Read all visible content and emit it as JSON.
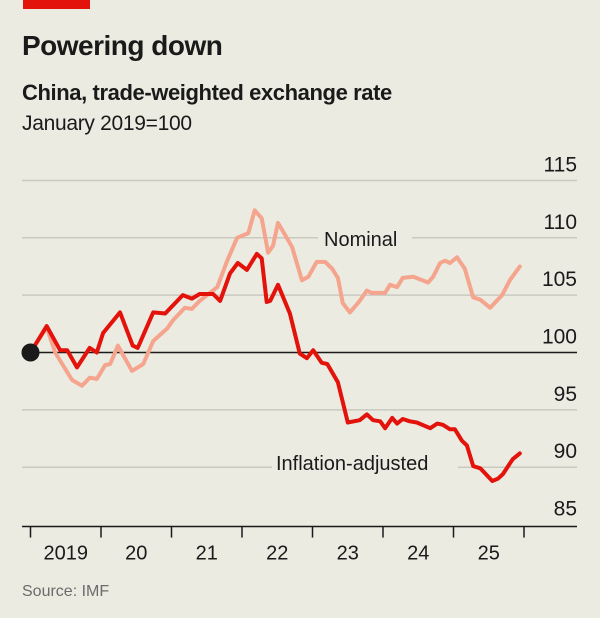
{
  "header": {
    "title": "Powering down",
    "subtitle": "China, trade-weighted exchange rate",
    "unit": "January 2019=100"
  },
  "source": "Source: IMF",
  "colors": {
    "accent_bar": "#e3120b",
    "inflation_adjusted": "#e3120b",
    "nominal": "#f5a48e",
    "background": "#ebebe1"
  },
  "chart_data": {
    "type": "line",
    "title": "Powering down",
    "subtitle": "China, trade-weighted exchange rate",
    "ylabel": "January 2019=100",
    "xlim": [
      2019.0,
      2026.0
    ],
    "ylim": [
      85,
      115
    ],
    "yticks": [
      85,
      90,
      95,
      100,
      105,
      110,
      115
    ],
    "ytick_labels": [
      "85",
      "90",
      "95",
      "100",
      "105",
      "110",
      "115"
    ],
    "xticks": [
      2019,
      2020,
      2021,
      2022,
      2023,
      2024,
      2025
    ],
    "xtick_labels": [
      "2019",
      "20",
      "21",
      "22",
      "23",
      "24",
      "25"
    ],
    "y_axis_side": "right",
    "grid": true,
    "baseline": 100,
    "start_marker": {
      "x": 2019.0,
      "y": 100
    },
    "series": [
      {
        "name": "Nominal",
        "color": "#f5a48e",
        "points": [
          [
            2019.0,
            100.0
          ],
          [
            2019.23,
            102.2
          ],
          [
            2019.35,
            100.0
          ],
          [
            2019.45,
            99.0
          ],
          [
            2019.59,
            97.6
          ],
          [
            2019.73,
            97.1
          ],
          [
            2019.84,
            97.8
          ],
          [
            2019.94,
            97.7
          ],
          [
            2020.06,
            98.9
          ],
          [
            2020.13,
            99.0
          ],
          [
            2020.24,
            100.6
          ],
          [
            2020.44,
            98.4
          ],
          [
            2020.6,
            99.0
          ],
          [
            2020.74,
            101.0
          ],
          [
            2020.94,
            102.1
          ],
          [
            2021.02,
            102.8
          ],
          [
            2021.19,
            103.9
          ],
          [
            2021.29,
            103.8
          ],
          [
            2021.4,
            104.5
          ],
          [
            2021.65,
            105.7
          ],
          [
            2021.79,
            108.0
          ],
          [
            2021.93,
            110.0
          ],
          [
            2022.09,
            110.4
          ],
          [
            2022.18,
            112.4
          ],
          [
            2022.28,
            111.7
          ],
          [
            2022.37,
            108.7
          ],
          [
            2022.44,
            109.3
          ],
          [
            2022.51,
            111.3
          ],
          [
            2022.71,
            109.2
          ],
          [
            2022.85,
            106.3
          ],
          [
            2022.94,
            106.6
          ],
          [
            2023.06,
            107.9
          ],
          [
            2023.18,
            107.9
          ],
          [
            2023.28,
            107.3
          ],
          [
            2023.36,
            106.5
          ],
          [
            2023.43,
            104.3
          ],
          [
            2023.53,
            103.5
          ],
          [
            2023.67,
            104.5
          ],
          [
            2023.77,
            105.4
          ],
          [
            2023.84,
            105.2
          ],
          [
            2024.03,
            105.2
          ],
          [
            2024.1,
            105.9
          ],
          [
            2024.2,
            105.7
          ],
          [
            2024.28,
            106.5
          ],
          [
            2024.43,
            106.6
          ],
          [
            2024.64,
            106.1
          ],
          [
            2024.71,
            106.6
          ],
          [
            2024.81,
            107.8
          ],
          [
            2024.88,
            108.0
          ],
          [
            2024.95,
            107.8
          ],
          [
            2025.05,
            108.3
          ],
          [
            2025.16,
            107.3
          ],
          [
            2025.28,
            104.8
          ],
          [
            2025.38,
            104.6
          ],
          [
            2025.52,
            103.9
          ],
          [
            2025.69,
            105.0
          ],
          [
            2025.8,
            106.3
          ],
          [
            2025.94,
            107.5
          ]
        ]
      },
      {
        "name": "Inflation-adjusted",
        "color": "#e3120b",
        "points": [
          [
            2019.0,
            100.0
          ],
          [
            2019.23,
            102.3
          ],
          [
            2019.42,
            100.2
          ],
          [
            2019.52,
            100.2
          ],
          [
            2019.66,
            98.7
          ],
          [
            2019.84,
            100.4
          ],
          [
            2019.94,
            100.0
          ],
          [
            2020.03,
            101.7
          ],
          [
            2020.27,
            103.5
          ],
          [
            2020.45,
            100.6
          ],
          [
            2020.52,
            100.4
          ],
          [
            2020.74,
            103.5
          ],
          [
            2020.91,
            103.4
          ],
          [
            2021.16,
            105.0
          ],
          [
            2021.29,
            104.7
          ],
          [
            2021.4,
            105.1
          ],
          [
            2021.59,
            105.1
          ],
          [
            2021.69,
            104.5
          ],
          [
            2021.83,
            106.9
          ],
          [
            2021.94,
            107.8
          ],
          [
            2022.07,
            107.2
          ],
          [
            2022.21,
            108.6
          ],
          [
            2022.28,
            108.2
          ],
          [
            2022.35,
            104.4
          ],
          [
            2022.4,
            104.5
          ],
          [
            2022.51,
            105.9
          ],
          [
            2022.68,
            103.4
          ],
          [
            2022.82,
            99.9
          ],
          [
            2022.92,
            99.5
          ],
          [
            2023.01,
            100.2
          ],
          [
            2023.13,
            99.1
          ],
          [
            2023.21,
            99.0
          ],
          [
            2023.36,
            97.4
          ],
          [
            2023.5,
            93.9
          ],
          [
            2023.67,
            94.1
          ],
          [
            2023.77,
            94.6
          ],
          [
            2023.86,
            94.1
          ],
          [
            2023.96,
            94.0
          ],
          [
            2024.03,
            93.4
          ],
          [
            2024.13,
            94.3
          ],
          [
            2024.2,
            93.8
          ],
          [
            2024.28,
            94.2
          ],
          [
            2024.38,
            94.0
          ],
          [
            2024.48,
            93.9
          ],
          [
            2024.67,
            93.4
          ],
          [
            2024.77,
            93.8
          ],
          [
            2024.85,
            93.7
          ],
          [
            2024.95,
            93.3
          ],
          [
            2025.02,
            93.3
          ],
          [
            2025.12,
            92.3
          ],
          [
            2025.19,
            91.9
          ],
          [
            2025.28,
            90.1
          ],
          [
            2025.38,
            89.9
          ],
          [
            2025.55,
            88.8
          ],
          [
            2025.63,
            89.0
          ],
          [
            2025.7,
            89.4
          ],
          [
            2025.84,
            90.7
          ],
          [
            2025.94,
            91.2
          ]
        ]
      }
    ]
  }
}
